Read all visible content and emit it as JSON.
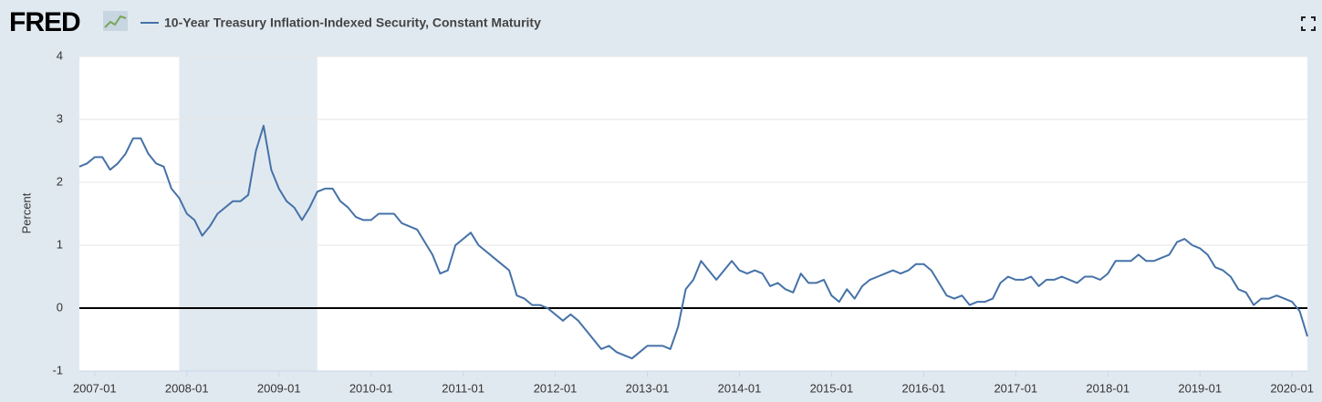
{
  "logo": "FRED",
  "chart_data": {
    "type": "line",
    "ylabel": "Percent",
    "x": [
      "2006-11",
      "2006-12",
      "2007-01",
      "2007-02",
      "2007-03",
      "2007-04",
      "2007-05",
      "2007-06",
      "2007-07",
      "2007-08",
      "2007-09",
      "2007-10",
      "2007-11",
      "2007-12",
      "2008-01",
      "2008-02",
      "2008-03",
      "2008-04",
      "2008-05",
      "2008-06",
      "2008-07",
      "2008-08",
      "2008-09",
      "2008-10",
      "2008-11",
      "2008-12",
      "2009-01",
      "2009-02",
      "2009-03",
      "2009-04",
      "2009-05",
      "2009-06",
      "2009-07",
      "2009-08",
      "2009-09",
      "2009-10",
      "2009-11",
      "2009-12",
      "2010-01",
      "2010-02",
      "2010-03",
      "2010-04",
      "2010-05",
      "2010-06",
      "2010-07",
      "2010-08",
      "2010-09",
      "2010-10",
      "2010-11",
      "2010-12",
      "2011-01",
      "2011-02",
      "2011-03",
      "2011-04",
      "2011-05",
      "2011-06",
      "2011-07",
      "2011-08",
      "2011-09",
      "2011-10",
      "2011-11",
      "2011-12",
      "2012-01",
      "2012-02",
      "2012-03",
      "2012-04",
      "2012-05",
      "2012-06",
      "2012-07",
      "2012-08",
      "2012-09",
      "2012-10",
      "2012-11",
      "2012-12",
      "2013-01",
      "2013-02",
      "2013-03",
      "2013-04",
      "2013-05",
      "2013-06",
      "2013-07",
      "2013-08",
      "2013-09",
      "2013-10",
      "2013-11",
      "2013-12",
      "2014-01",
      "2014-02",
      "2014-03",
      "2014-04",
      "2014-05",
      "2014-06",
      "2014-07",
      "2014-08",
      "2014-09",
      "2014-10",
      "2014-11",
      "2014-12",
      "2015-01",
      "2015-02",
      "2015-03",
      "2015-04",
      "2015-05",
      "2015-06",
      "2015-07",
      "2015-08",
      "2015-09",
      "2015-10",
      "2015-11",
      "2015-12",
      "2016-01",
      "2016-02",
      "2016-03",
      "2016-04",
      "2016-05",
      "2016-06",
      "2016-07",
      "2016-08",
      "2016-09",
      "2016-10",
      "2016-11",
      "2016-12",
      "2017-01",
      "2017-02",
      "2017-03",
      "2017-04",
      "2017-05",
      "2017-06",
      "2017-07",
      "2017-08",
      "2017-09",
      "2017-10",
      "2017-11",
      "2017-12",
      "2018-01",
      "2018-02",
      "2018-03",
      "2018-04",
      "2018-05",
      "2018-06",
      "2018-07",
      "2018-08",
      "2018-09",
      "2018-10",
      "2018-11",
      "2018-12",
      "2019-01",
      "2019-02",
      "2019-03",
      "2019-04",
      "2019-05",
      "2019-06",
      "2019-07",
      "2019-08",
      "2019-09",
      "2019-10",
      "2019-11",
      "2019-12",
      "2020-01",
      "2020-02",
      "2020-03"
    ],
    "series": [
      {
        "name": "10-Year Treasury Inflation-Indexed Security, Constant Maturity",
        "color": "#4572a7",
        "values": [
          2.25,
          2.3,
          2.4,
          2.4,
          2.2,
          2.3,
          2.45,
          2.7,
          2.7,
          2.45,
          2.3,
          2.25,
          1.9,
          1.75,
          1.5,
          1.4,
          1.15,
          1.3,
          1.5,
          1.6,
          1.7,
          1.7,
          1.8,
          2.5,
          2.9,
          2.2,
          1.9,
          1.7,
          1.6,
          1.4,
          1.6,
          1.85,
          1.9,
          1.9,
          1.7,
          1.6,
          1.45,
          1.4,
          1.4,
          1.5,
          1.5,
          1.5,
          1.35,
          1.3,
          1.25,
          1.05,
          0.85,
          0.55,
          0.6,
          1.0,
          1.1,
          1.2,
          1.0,
          0.9,
          0.8,
          0.7,
          0.6,
          0.2,
          0.15,
          0.05,
          0.05,
          0.0,
          -0.1,
          -0.2,
          -0.1,
          -0.2,
          -0.35,
          -0.5,
          -0.65,
          -0.6,
          -0.7,
          -0.75,
          -0.8,
          -0.7,
          -0.6,
          -0.6,
          -0.6,
          -0.65,
          -0.3,
          0.3,
          0.45,
          0.75,
          0.6,
          0.45,
          0.6,
          0.75,
          0.6,
          0.55,
          0.6,
          0.55,
          0.35,
          0.4,
          0.3,
          0.25,
          0.55,
          0.4,
          0.4,
          0.45,
          0.2,
          0.1,
          0.3,
          0.15,
          0.35,
          0.45,
          0.5,
          0.55,
          0.6,
          0.55,
          0.6,
          0.7,
          0.7,
          0.6,
          0.4,
          0.2,
          0.15,
          0.2,
          0.05,
          0.1,
          0.1,
          0.15,
          0.4,
          0.5,
          0.45,
          0.45,
          0.5,
          0.35,
          0.45,
          0.45,
          0.5,
          0.45,
          0.4,
          0.5,
          0.5,
          0.45,
          0.55,
          0.75,
          0.75,
          0.75,
          0.85,
          0.75,
          0.75,
          0.8,
          0.85,
          1.05,
          1.1,
          1.0,
          0.95,
          0.85,
          0.65,
          0.6,
          0.5,
          0.3,
          0.25,
          0.05,
          0.15,
          0.15,
          0.2,
          0.15,
          0.1,
          -0.05,
          -0.45
        ]
      }
    ],
    "recessions": [
      {
        "start": "2007-12",
        "end": "2009-06"
      }
    ],
    "xlim": [
      "2006-11",
      "2020-03"
    ],
    "xticks": [
      "2007-01",
      "2008-01",
      "2009-01",
      "2010-01",
      "2011-01",
      "2012-01",
      "2013-01",
      "2014-01",
      "2015-01",
      "2016-01",
      "2017-01",
      "2018-01",
      "2019-01",
      "2020-01"
    ],
    "ylim": [
      -1,
      4
    ],
    "yticks": [
      -1,
      0,
      1,
      2,
      3,
      4
    ],
    "grid": true,
    "zero_line": true
  }
}
